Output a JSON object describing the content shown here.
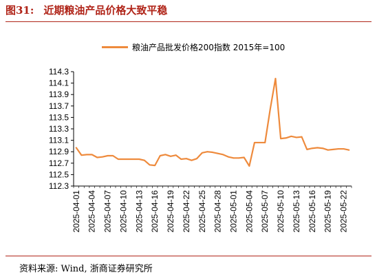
{
  "figure": {
    "number": "图31:",
    "title": "近期粮油产品价格大致平稳",
    "source": "资料来源: Wind, 浙商证券研究所"
  },
  "chart_data": {
    "type": "line",
    "title": "近期粮油产品价格大致平稳",
    "xlabel": "",
    "ylabel": "",
    "ylim": [
      112.3,
      114.3
    ],
    "yticks": [
      "114.3",
      "114.1",
      "113.9",
      "113.7",
      "113.5",
      "113.3",
      "113.1",
      "112.9",
      "112.7",
      "112.5",
      "112.3"
    ],
    "grid": false,
    "legend_position": "top",
    "line_color": "#ee8a3c",
    "x": [
      "2025-04-01",
      "2025-04-02",
      "2025-04-03",
      "2025-04-04",
      "2025-04-05",
      "2025-04-06",
      "2025-04-07",
      "2025-04-08",
      "2025-04-09",
      "2025-04-10",
      "2025-04-11",
      "2025-04-12",
      "2025-04-13",
      "2025-04-14",
      "2025-04-15",
      "2025-04-16",
      "2025-04-17",
      "2025-04-18",
      "2025-04-19",
      "2025-04-20",
      "2025-04-21",
      "2025-04-22",
      "2025-04-23",
      "2025-04-24",
      "2025-04-25",
      "2025-04-26",
      "2025-04-27",
      "2025-04-28",
      "2025-04-29",
      "2025-04-30",
      "2025-05-01",
      "2025-05-02",
      "2025-05-03",
      "2025-05-04",
      "2025-05-05",
      "2025-05-06",
      "2025-05-07",
      "2025-05-08",
      "2025-05-09",
      "2025-05-10",
      "2025-05-11",
      "2025-05-12",
      "2025-05-13",
      "2025-05-14",
      "2025-05-15",
      "2025-05-16",
      "2025-05-17",
      "2025-05-18",
      "2025-05-19",
      "2025-05-20",
      "2025-05-21",
      "2025-05-22",
      "2025-05-23"
    ],
    "xtick_labels": [
      "2025-04-01",
      "2025-04-04",
      "2025-04-07",
      "2025-04-10",
      "2025-04-13",
      "2025-04-16",
      "2025-04-19",
      "2025-04-22",
      "2025-04-25",
      "2025-04-28",
      "2025-05-01",
      "2025-05-04",
      "2025-05-07",
      "2025-05-10",
      "2025-05-13",
      "2025-05-16",
      "2025-05-19",
      "2025-05-22"
    ],
    "series": [
      {
        "name": "粮油产品批发价格200指数 2015年=100",
        "values": [
          112.97,
          112.84,
          112.85,
          112.85,
          112.8,
          112.81,
          112.83,
          112.83,
          112.77,
          112.77,
          112.77,
          112.77,
          112.77,
          112.75,
          112.67,
          112.66,
          112.83,
          112.85,
          112.82,
          112.84,
          112.77,
          112.78,
          112.75,
          112.78,
          112.88,
          112.9,
          112.89,
          112.87,
          112.85,
          112.81,
          112.79,
          112.79,
          112.8,
          112.65,
          113.06,
          113.06,
          113.06,
          113.65,
          114.18,
          113.13,
          113.14,
          113.17,
          113.15,
          113.16,
          112.94,
          112.96,
          112.97,
          112.96,
          112.93,
          112.94,
          112.95,
          112.95,
          112.93
        ]
      }
    ]
  }
}
